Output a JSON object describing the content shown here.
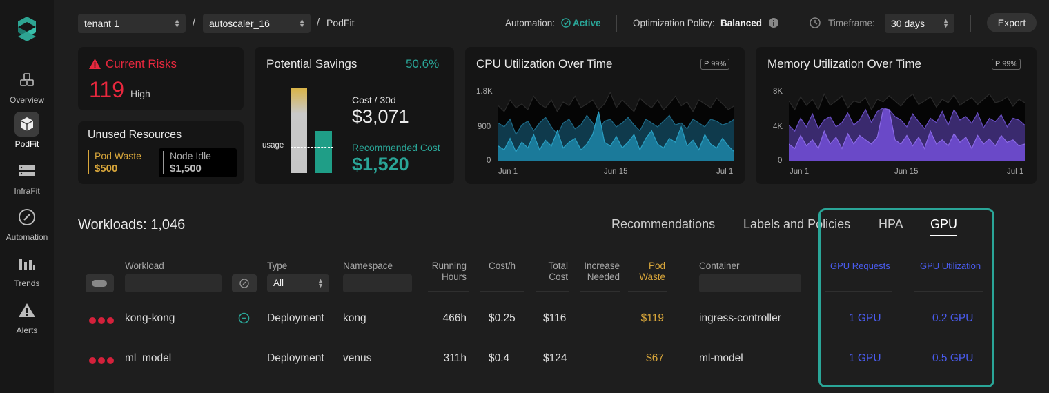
{
  "sidebar": {
    "items": [
      {
        "label": "Overview"
      },
      {
        "label": "PodFit"
      },
      {
        "label": "InfraFit"
      },
      {
        "label": "Automation"
      },
      {
        "label": "Trends"
      },
      {
        "label": "Alerts"
      }
    ]
  },
  "topbar": {
    "tenant": "tenant 1",
    "autoscaler": "autoscaler_16",
    "separator": "/",
    "page": "PodFit",
    "automation_label": "Automation:",
    "automation_status": "Active",
    "policy_label": "Optimization Policy:",
    "policy_value": "Balanced",
    "timeframe_label": "Timeframe:",
    "timeframe_value": "30 days",
    "export_label": "Export"
  },
  "risks": {
    "title": "Current Risks",
    "count": "119",
    "level": "High"
  },
  "unused": {
    "title": "Unused Resources",
    "pod_waste_label": "Pod Waste",
    "pod_waste_value": "$500",
    "node_idle_label": "Node Idle",
    "node_idle_value": "$1,500"
  },
  "savings": {
    "title": "Potential Savings",
    "percent": "50.6%",
    "usage_label": "usage",
    "cost_label": "Cost / 30d",
    "cost_value": "$3,071",
    "rec_label": "Recommended Cost",
    "rec_value": "$1,520"
  },
  "cpu_chart": {
    "title": "CPU Utilization Over Time",
    "badge": "P 99%",
    "y_ticks": [
      "1.8K",
      "900",
      "0"
    ],
    "x_ticks": [
      "Jun 1",
      "Jun 15",
      "Jul 1"
    ]
  },
  "mem_chart": {
    "title": "Memory Utilization Over Time",
    "badge": "P 99%",
    "y_ticks": [
      "8K",
      "4K",
      "0"
    ],
    "x_ticks": [
      "Jun 1",
      "Jun 15",
      "Jul 1"
    ]
  },
  "chart_data": [
    {
      "type": "area",
      "title": "CPU Utilization Over Time",
      "ylim": [
        0,
        1800
      ],
      "x_ticks": [
        "Jun 1",
        "Jun 15",
        "Jul 1"
      ],
      "series": [
        {
          "values": [
            1450,
            1300,
            1600,
            1400,
            1500,
            1350,
            1700,
            1500,
            1400,
            1600,
            1300,
            1550,
            1450,
            1700,
            1400,
            1500,
            1600,
            1350,
            1500,
            1800,
            1400,
            1600,
            1450,
            1300,
            1650,
            1500,
            1400,
            1600,
            1350,
            1500,
            1700,
            1450,
            1550,
            1300,
            1600,
            1500,
            1400,
            1650,
            1500,
            1350,
            1450
          ]
        },
        {
          "values": [
            1000,
            900,
            1100,
            700,
            950,
            1050,
            800,
            1000,
            1150,
            900,
            700,
            1000,
            1100,
            850,
            950,
            1200,
            1000,
            800,
            1050,
            1100,
            900,
            1000,
            1150,
            950,
            800,
            1100,
            1000,
            900,
            1050,
            1200,
            950,
            1000,
            850,
            1100,
            1000,
            900,
            1100,
            1050,
            950,
            1000,
            1100
          ]
        },
        {
          "values": [
            400,
            300,
            600,
            250,
            500,
            350,
            700,
            300,
            550,
            400,
            800,
            350,
            500,
            600,
            300,
            450,
            700,
            1300,
            500,
            400,
            650,
            350,
            500,
            700,
            300,
            600,
            800,
            450,
            350,
            600,
            500,
            900,
            400,
            550,
            300,
            700,
            450,
            350,
            600,
            400,
            250
          ]
        }
      ]
    },
    {
      "type": "area",
      "title": "Memory Utilization Over Time",
      "ylim": [
        0,
        8000
      ],
      "x_ticks": [
        "Jun 1",
        "Jun 15",
        "Jul 1"
      ],
      "series": [
        {
          "values": [
            7000,
            6000,
            7500,
            6500,
            7200,
            6000,
            7800,
            6500,
            7000,
            7600,
            6200,
            7000,
            6800,
            7400,
            6000,
            7200,
            6900,
            7600,
            7000,
            6400,
            7300,
            7800,
            6600,
            7000,
            7500,
            6300,
            7200,
            6800,
            7700,
            6500,
            7000,
            7400,
            6600,
            7200,
            7800,
            6800,
            7000,
            7500,
            6400,
            7200,
            6800
          ]
        },
        {
          "values": [
            4200,
            3500,
            5000,
            4000,
            5500,
            3800,
            4800,
            5200,
            4000,
            4500,
            5600,
            4200,
            4800,
            6000,
            4500,
            5800,
            6200,
            6000,
            5200,
            4800,
            4000,
            5500,
            4600,
            3800,
            5000,
            4500,
            5800,
            4200,
            6000,
            4800,
            5200,
            4400,
            5600,
            3900,
            5000,
            4600,
            5400,
            4000,
            5000,
            4800,
            4200
          ]
        },
        {
          "values": [
            2000,
            1500,
            3000,
            1800,
            2500,
            1500,
            3500,
            2000,
            2800,
            1500,
            3200,
            2000,
            3000,
            2500,
            2000,
            2800,
            6000,
            6000,
            2500,
            2000,
            3000,
            1800,
            2800,
            1500,
            3500,
            2000,
            2500,
            1800,
            3200,
            2200,
            2800,
            1500,
            3000,
            2000,
            2600,
            1800,
            3000,
            2200,
            2500,
            1800,
            2000
          ]
        }
      ]
    }
  ],
  "workloads": {
    "title": "Workloads: 1,046",
    "tabs": [
      "Recommendations",
      "Labels and Policies",
      "HPA",
      "GPU"
    ],
    "headers": {
      "workload": "Workload",
      "type": "Type",
      "type_filter": "All",
      "namespace": "Namespace",
      "running_hours_1": "Running",
      "running_hours_2": "Hours",
      "cost_h": "Cost/h",
      "total_cost_1": "Total",
      "total_cost_2": "Cost",
      "increase_1": "Increase",
      "increase_2": "Needed",
      "pod_waste_1": "Pod",
      "pod_waste_2": "Waste",
      "container": "Container",
      "gpu_requests": "GPU Requests",
      "gpu_utilization": "GPU Utilization"
    },
    "rows": [
      {
        "workload": "kong-kong",
        "type": "Deployment",
        "namespace": "kong",
        "running_hours": "466h",
        "cost_h": "$0.25",
        "total_cost": "$116",
        "pod_waste": "$119",
        "container": "ingress-controller",
        "gpu_requests": "1 GPU",
        "gpu_utilization": "0.2 GPU"
      },
      {
        "workload": "ml_model",
        "type": "Deployment",
        "namespace": "venus",
        "running_hours": "311h",
        "cost_h": "$0.4",
        "total_cost": "$124",
        "pod_waste": "$67",
        "container": "ml-model",
        "gpu_requests": "1 GPU",
        "gpu_utilization": "0.5 GPU"
      }
    ]
  },
  "colors": {
    "accent_teal": "#2aa698",
    "risk_red": "#e8283e",
    "waste_gold": "#d9a73b",
    "gpu_blue": "#4a5cf0",
    "cpu_area": "#1b7a9a",
    "mem_area": "#6a49c8"
  }
}
